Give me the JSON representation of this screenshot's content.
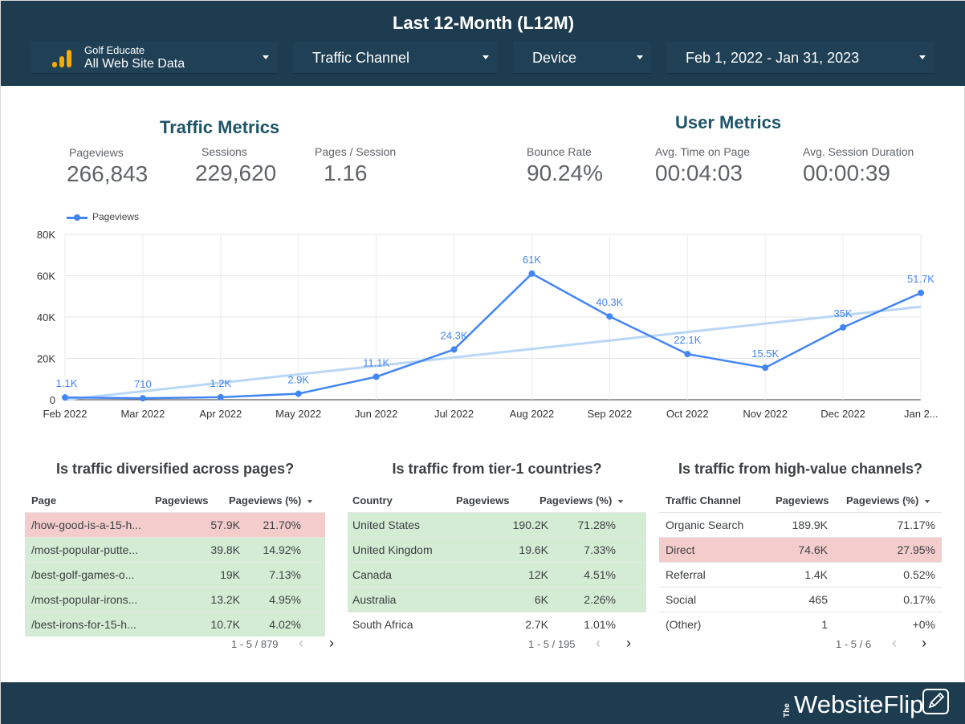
{
  "header": {
    "title": "Last 12-Month (L12M)",
    "account_name": "Golf Educate",
    "property_name": "All Web Site Data",
    "filters": [
      "Traffic Channel",
      "Device",
      "Feb 1, 2022 - Jan 31, 2023"
    ]
  },
  "traffic_metrics": {
    "title": "Traffic Metrics",
    "items": [
      {
        "label": "Pageviews",
        "value": "266,843"
      },
      {
        "label": "Sessions",
        "value": "229,620"
      },
      {
        "label": "Pages / Session",
        "value": "1.16"
      }
    ]
  },
  "user_metrics": {
    "title": "User Metrics",
    "items": [
      {
        "label": "Bounce Rate",
        "value": "90.24%"
      },
      {
        "label": "Avg. Time on Page",
        "value": "00:04:03"
      },
      {
        "label": "Avg. Session Duration",
        "value": "00:00:39"
      }
    ]
  },
  "chart_data": {
    "type": "line",
    "categories": [
      "Feb 2022",
      "Mar 2022",
      "Apr 2022",
      "May 2022",
      "Jun 2022",
      "Jul 2022",
      "Aug 2022",
      "Sep 2022",
      "Oct 2022",
      "Nov 2022",
      "Dec 2022",
      "Jan 2..."
    ],
    "series": [
      {
        "name": "Pageviews",
        "values": [
          1100,
          710,
          1200,
          2900,
          11100,
          24300,
          61000,
          40300,
          22100,
          15500,
          35000,
          51700
        ],
        "data_labels": [
          "1.1K",
          "710",
          "1.2K",
          "2.9K",
          "11.1K",
          "24.3K",
          "61K",
          "40.3K",
          "22.1K",
          "15.5K",
          "35K",
          "51.7K"
        ]
      }
    ],
    "trendline": {
      "start": 0,
      "end": 45000
    },
    "y_ticks": [
      "0",
      "20K",
      "40K",
      "60K",
      "80K"
    ],
    "ylim": [
      0,
      80000
    ],
    "grid": true,
    "legend": "top-left",
    "colors": {
      "series": "#4285f4",
      "trendline": "#b9d7f7"
    }
  },
  "tables": [
    {
      "title": "Is traffic diversified across pages?",
      "headers": [
        "Page",
        "Pageviews",
        "Pageviews (%)"
      ],
      "rows": [
        {
          "cells": [
            "/how-good-is-a-15-h...",
            "57.9K",
            "21.70%"
          ],
          "status": "bad"
        },
        {
          "cells": [
            "/most-popular-putte...",
            "39.8K",
            "14.92%"
          ],
          "status": "good"
        },
        {
          "cells": [
            "/best-golf-games-o...",
            "19K",
            "7.13%"
          ],
          "status": "good"
        },
        {
          "cells": [
            "/most-popular-irons...",
            "13.2K",
            "4.95%"
          ],
          "status": "good"
        },
        {
          "cells": [
            "/best-irons-for-15-h...",
            "10.7K",
            "4.02%"
          ],
          "status": "good"
        }
      ],
      "pager": "1 - 5 / 879"
    },
    {
      "title": "Is traffic from tier-1 countries?",
      "headers": [
        "Country",
        "Pageviews",
        "Pageviews (%)"
      ],
      "rows": [
        {
          "cells": [
            "United States",
            "190.2K",
            "71.28%"
          ],
          "status": "good"
        },
        {
          "cells": [
            "United Kingdom",
            "19.6K",
            "7.33%"
          ],
          "status": "good"
        },
        {
          "cells": [
            "Canada",
            "12K",
            "4.51%"
          ],
          "status": "good"
        },
        {
          "cells": [
            "Australia",
            "6K",
            "2.26%"
          ],
          "status": "good"
        },
        {
          "cells": [
            "South Africa",
            "2.7K",
            "1.01%"
          ],
          "status": "none"
        }
      ],
      "pager": "1 - 5 / 195"
    },
    {
      "title": "Is traffic from high-value channels?",
      "headers": [
        "Traffic Channel",
        "Pageviews",
        "Pageviews (%)"
      ],
      "rows": [
        {
          "cells": [
            "Organic Search",
            "189.9K",
            "71.17%"
          ],
          "status": "none"
        },
        {
          "cells": [
            "Direct",
            "74.6K",
            "27.95%"
          ],
          "status": "bad"
        },
        {
          "cells": [
            "Referral",
            "1.4K",
            "0.52%"
          ],
          "status": "none"
        },
        {
          "cells": [
            "Social",
            "465",
            "0.17%"
          ],
          "status": "none"
        },
        {
          "cells": [
            "(Other)",
            "1",
            "+0%"
          ],
          "status": "none"
        }
      ],
      "pager": "1 - 5 / 6"
    }
  ],
  "footer": {
    "brand_prefix": "The",
    "brand": "WebsiteFlip"
  },
  "colors": {
    "header_bg": "#1d3c50",
    "good_row": "#d4ecd4",
    "bad_row": "#f4cccc",
    "title": "#1d5468"
  }
}
